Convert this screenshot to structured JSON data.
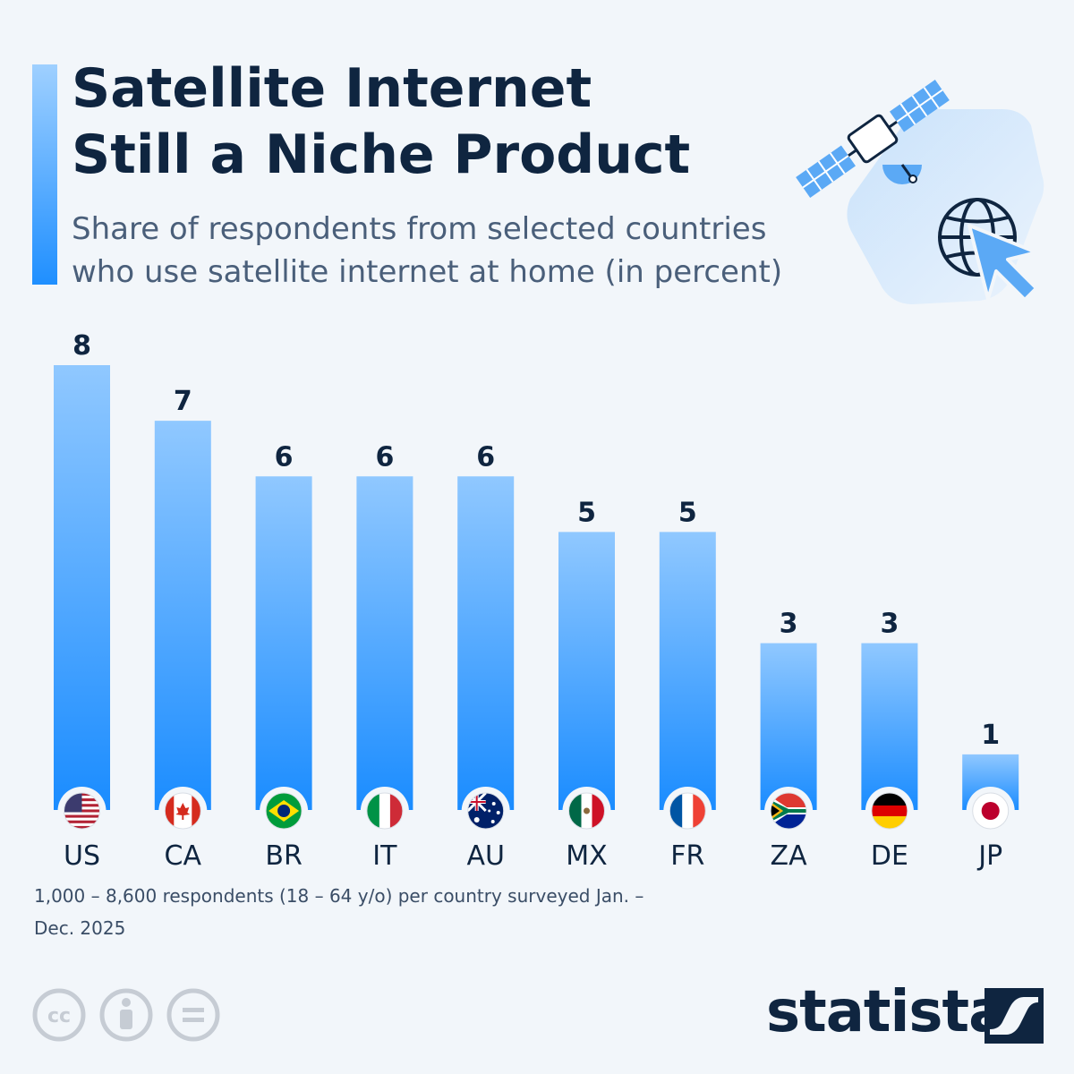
{
  "header": {
    "title_line1": "Satellite Internet",
    "title_line2": "Still a Niche Product",
    "subtitle_line1": "Share of respondents from selected countries",
    "subtitle_line2": "who use satellite internet at home (in percent)"
  },
  "illustration": {
    "icons": [
      "satellite-icon",
      "globe-icon",
      "cursor-icon"
    ]
  },
  "chart_data": {
    "type": "bar",
    "categories": [
      "US",
      "CA",
      "BR",
      "IT",
      "AU",
      "MX",
      "FR",
      "ZA",
      "DE",
      "JP"
    ],
    "values": [
      8,
      7,
      6,
      6,
      6,
      5,
      5,
      3,
      3,
      1
    ],
    "flags": [
      "us-flag-icon",
      "ca-flag-icon",
      "br-flag-icon",
      "it-flag-icon",
      "au-flag-icon",
      "mx-flag-icon",
      "fr-flag-icon",
      "za-flag-icon",
      "de-flag-icon",
      "jp-flag-icon"
    ],
    "ylim": [
      0,
      8
    ],
    "grid": false,
    "bar_color_top": "#90c8ff",
    "bar_color_bottom": "#1a8cff"
  },
  "footer": {
    "note_line1": "1,000 – 8,600 respondents (18 – 64 y/o) per country surveyed Jan. –",
    "note_line2": "Dec. 2025",
    "license_icons": [
      "cc-icon",
      "attribution-icon",
      "no-derivatives-icon"
    ],
    "brand": "statista"
  },
  "colors": {
    "title": "#0f2540",
    "subtitle": "#4a5f7a",
    "accent": "#1f8fff",
    "background": "#f2f6fa"
  }
}
